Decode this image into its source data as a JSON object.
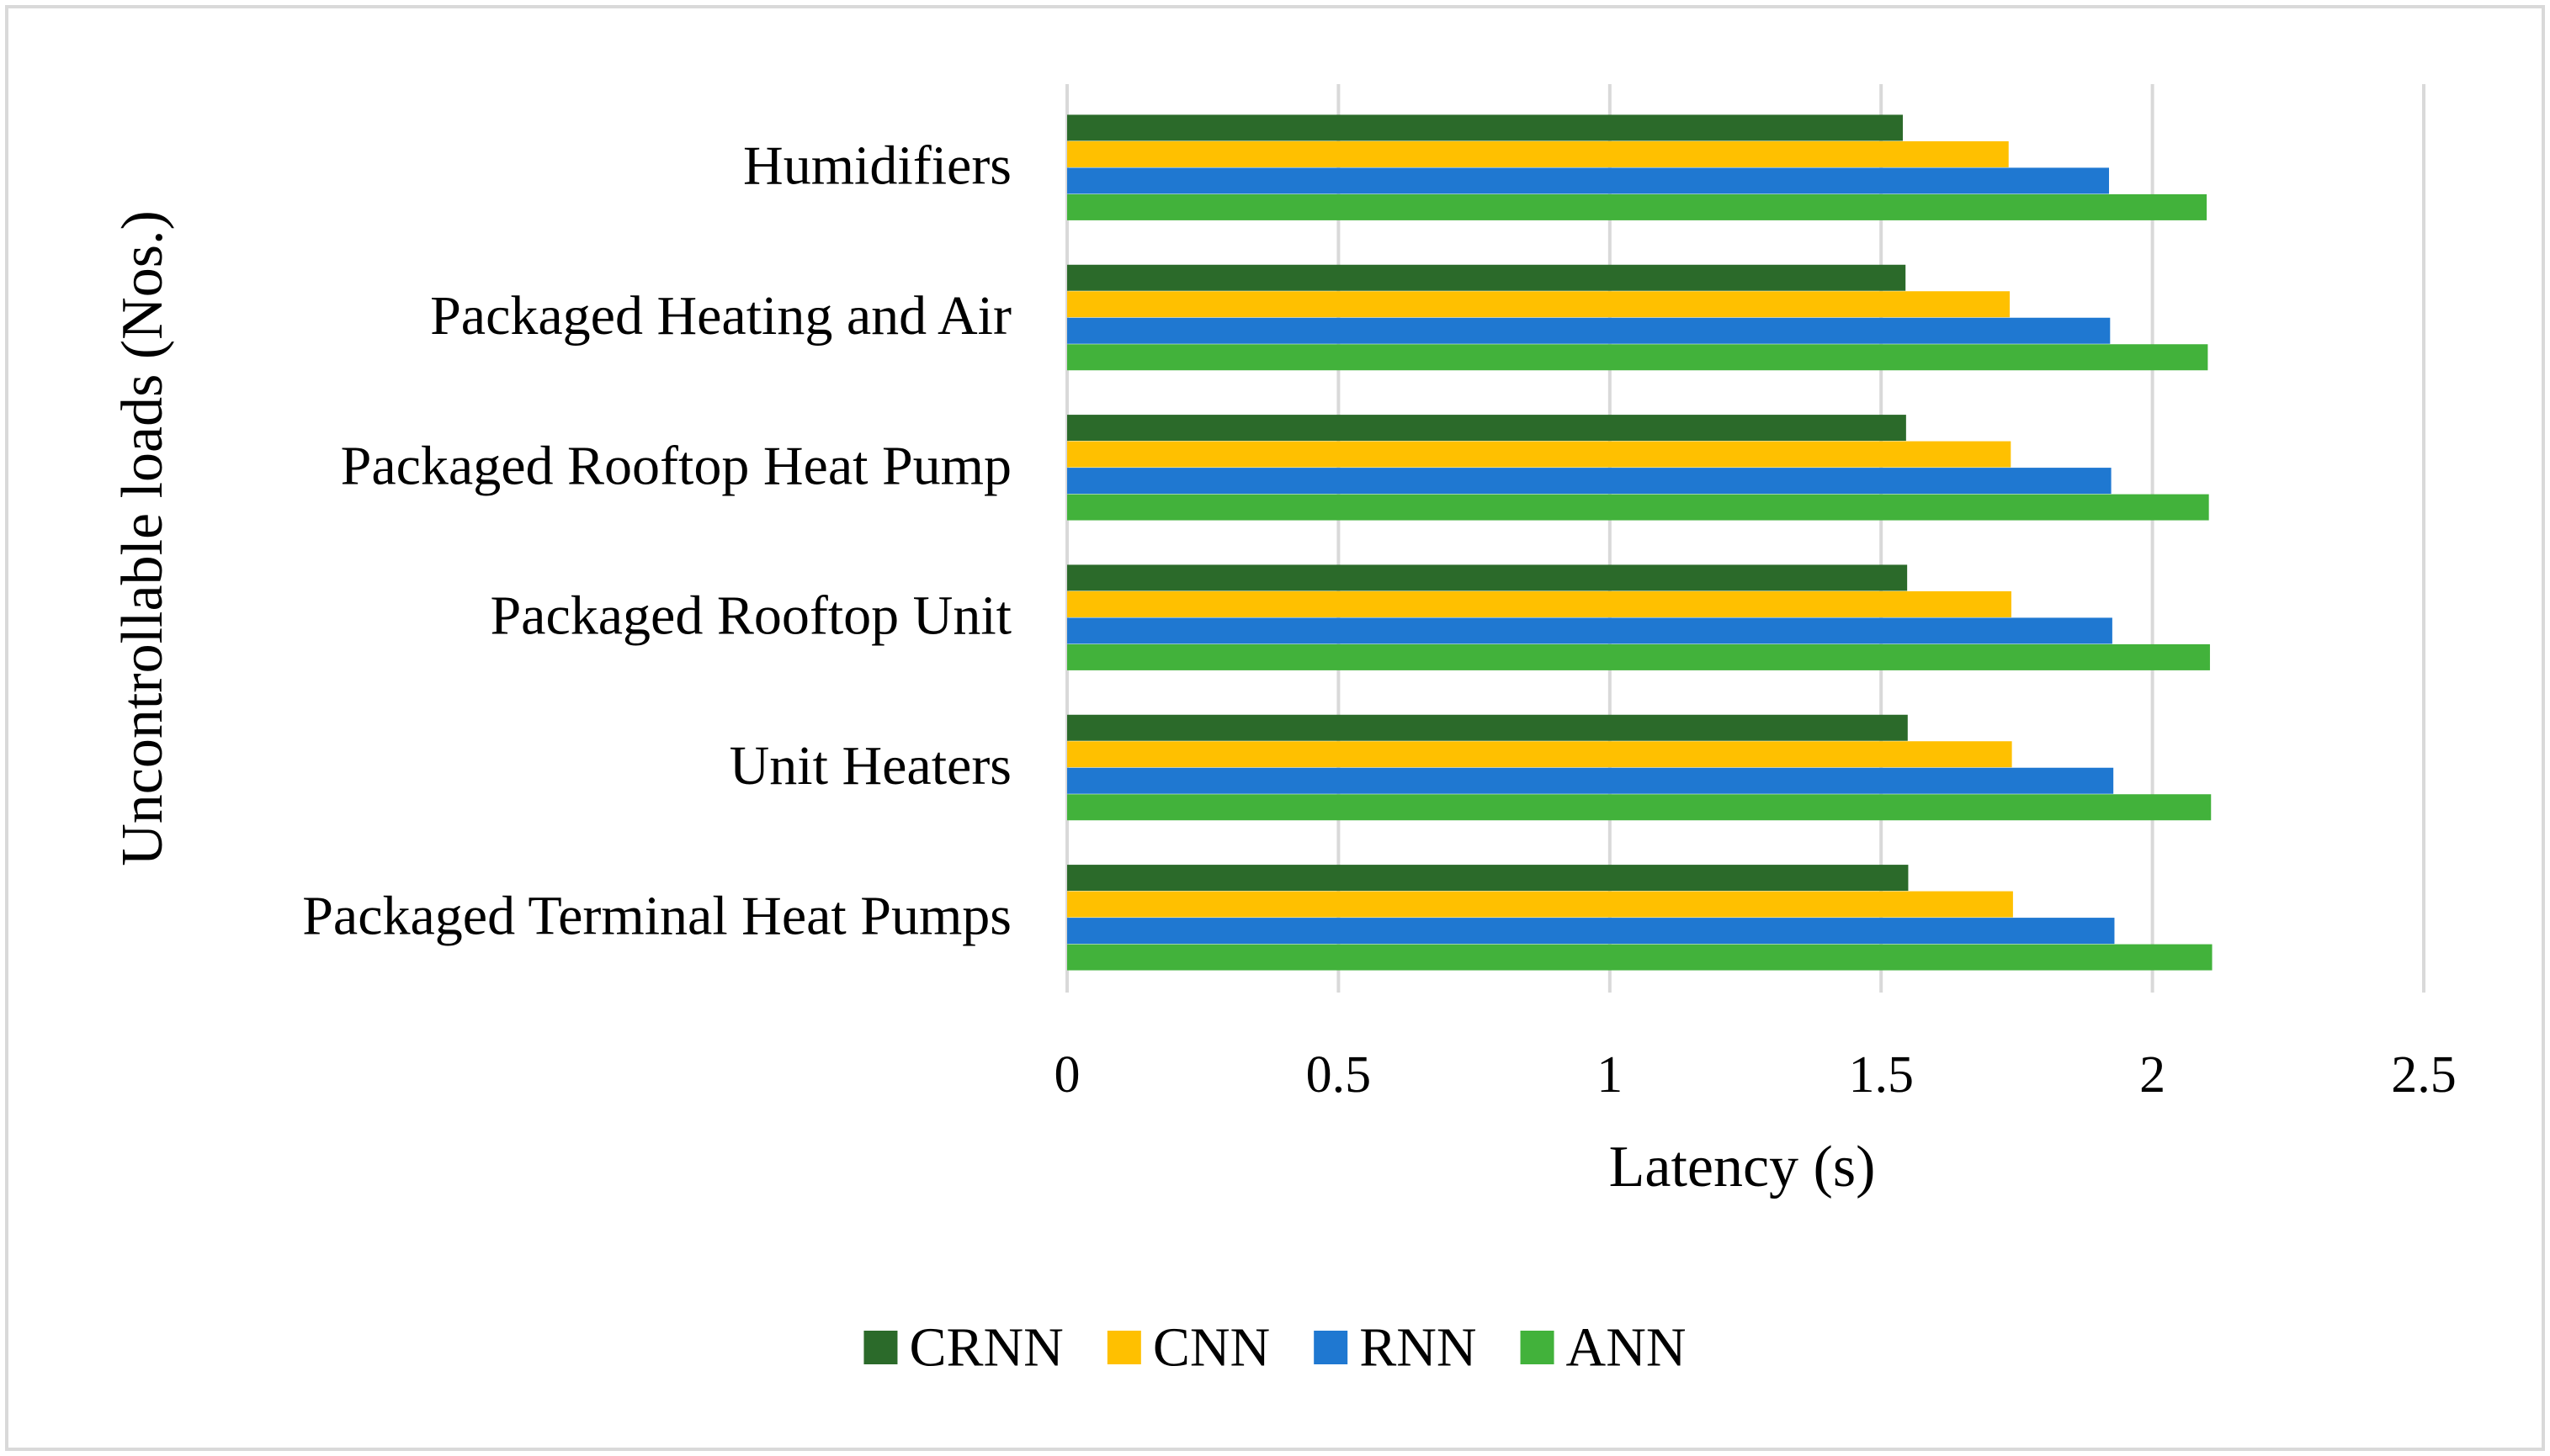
{
  "chart_data": {
    "type": "bar",
    "orientation": "horizontal",
    "title": "",
    "categories": [
      "Humidifiers",
      "Packaged Heating and Air",
      "Packaged Rooftop Heat Pump",
      "Packaged Rooftop Unit",
      "Unit Heaters",
      "Packaged Terminal Heat Pumps"
    ],
    "series": [
      {
        "name": "CRNN",
        "color": "#2b6a2a",
        "values": [
          1.54,
          1.545,
          1.546,
          1.548,
          1.549,
          1.55
        ]
      },
      {
        "name": "CNN",
        "color": "#ffc000",
        "values": [
          1.735,
          1.737,
          1.739,
          1.74,
          1.741,
          1.743
        ]
      },
      {
        "name": "RNN",
        "color": "#1f78d1",
        "values": [
          1.92,
          1.922,
          1.924,
          1.926,
          1.928,
          1.93
        ]
      },
      {
        "name": "ANN",
        "color": "#42b23b",
        "values": [
          2.1,
          2.102,
          2.104,
          2.106,
          2.108,
          2.11
        ]
      }
    ],
    "xlabel": "Latency (s)",
    "ylabel": "Uncontrollable loads (Nos.)",
    "xlim": [
      0,
      2.5
    ],
    "xticks": [
      0,
      0.5,
      1,
      1.5,
      2,
      2.5
    ],
    "xtick_labels": [
      "0",
      "0.5",
      "1",
      "1.5",
      "2",
      "2.5"
    ],
    "grid": true,
    "legend_position": "bottom"
  },
  "colors": {
    "grid": "#d9d9d9",
    "frame": "#d9d9d9",
    "text": "#000000"
  }
}
